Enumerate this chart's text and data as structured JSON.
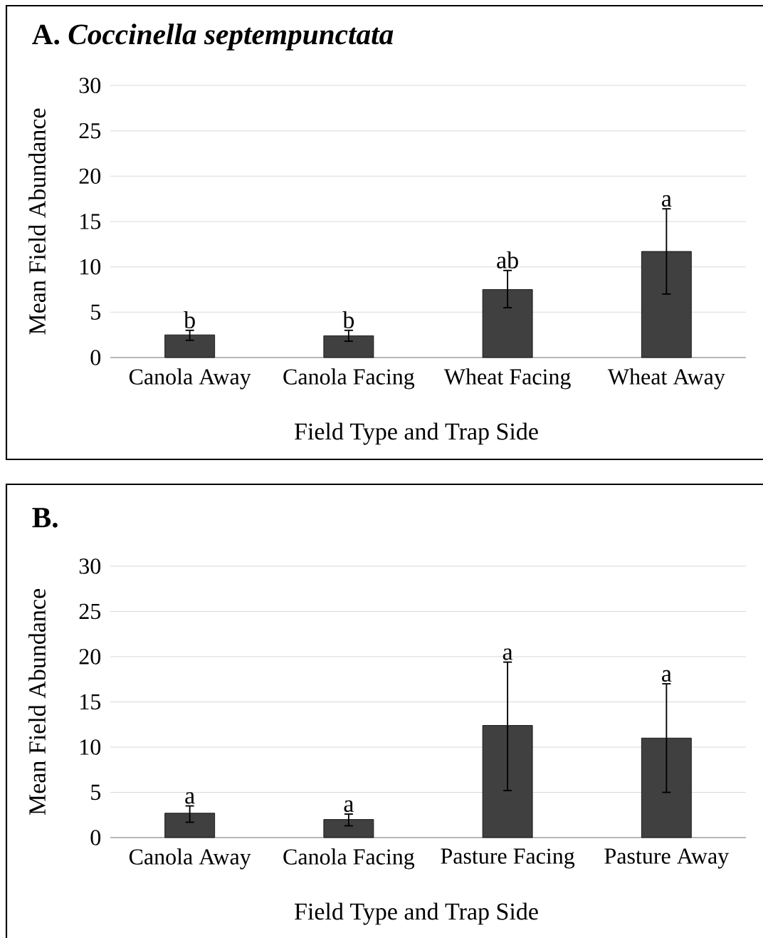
{
  "chart_data": [
    {
      "type": "bar",
      "title": "A. *Coccinella septempunctata*",
      "xlabel": "Field Type and Trap Side",
      "ylabel": "Mean Field Abundance",
      "categories": [
        "Canola Away",
        "Canola Facing",
        "Wheat Facing",
        "Wheat Away"
      ],
      "values": [
        2.5,
        2.4,
        7.5,
        11.7
      ],
      "errors": [
        [
          1.9,
          3.0
        ],
        [
          1.8,
          3.0
        ],
        [
          5.5,
          9.6
        ],
        [
          7.0,
          16.4
        ]
      ],
      "color": "#404040",
      "ylim": [
        0,
        30
      ],
      "yticks": [
        0,
        5,
        10,
        15,
        20,
        25,
        30
      ],
      "grid": "y",
      "annotations": [
        {
          "text": "b",
          "x": "Canola Away",
          "y": 3.0
        },
        {
          "text": "b",
          "x": "Canola Facing",
          "y": 3.0
        },
        {
          "text": "ab",
          "x": "Wheat Facing",
          "y": 9.6
        },
        {
          "text": "a",
          "x": "Wheat Away",
          "y": 16.4
        }
      ]
    },
    {
      "type": "bar",
      "title": "B.",
      "xlabel": "Field Type and Trap Side",
      "ylabel": "Mean Field Abundance",
      "categories": [
        "Canola Away",
        "Canola Facing",
        "Pasture Facing",
        "Pasture Away"
      ],
      "values": [
        2.7,
        2.0,
        12.4,
        11.0
      ],
      "errors": [
        [
          1.7,
          3.5
        ],
        [
          1.3,
          2.6
        ],
        [
          5.2,
          19.4
        ],
        [
          5.0,
          17.0
        ]
      ],
      "color": "#404040",
      "ylim": [
        0,
        30
      ],
      "yticks": [
        0,
        5,
        10,
        15,
        20,
        25,
        30
      ],
      "grid": "y",
      "annotations": [
        {
          "text": "a",
          "x": "Canola Away",
          "y": 3.5
        },
        {
          "text": "a",
          "x": "Canola Facing",
          "y": 2.6
        },
        {
          "text": "a",
          "x": "Pasture Facing",
          "y": 19.4
        },
        {
          "text": "a",
          "x": "Pasture Away",
          "y": 17.0
        }
      ]
    }
  ]
}
